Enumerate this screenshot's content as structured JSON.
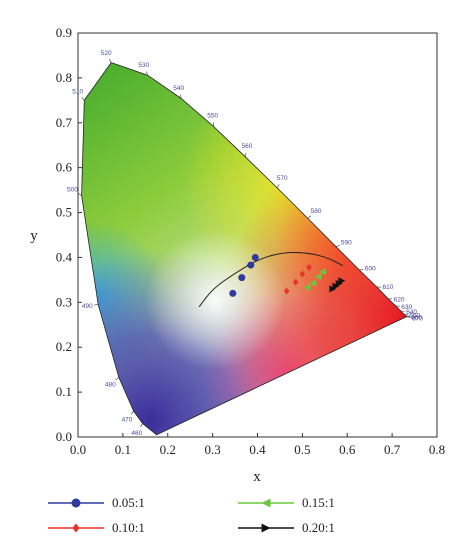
{
  "chart_data": {
    "type": "scatter",
    "xlabel": "x",
    "ylabel": "y",
    "xlim": [
      0.0,
      0.8
    ],
    "ylim": [
      0.0,
      0.9
    ],
    "x_ticks": [
      "0.0",
      "0.1",
      "0.2",
      "0.3",
      "0.4",
      "0.5",
      "0.6",
      "0.7",
      "0.8"
    ],
    "y_ticks": [
      "0.0",
      "0.1",
      "0.2",
      "0.3",
      "0.4",
      "0.5",
      "0.6",
      "0.7",
      "0.8",
      "0.9"
    ],
    "locus_wavelengths": [
      {
        "label": "460",
        "x": 0.144,
        "y": 0.03
      },
      {
        "label": "470",
        "x": 0.124,
        "y": 0.058
      },
      {
        "label": "480",
        "x": 0.091,
        "y": 0.133
      },
      {
        "label": "490",
        "x": 0.045,
        "y": 0.295
      },
      {
        "label": "500",
        "x": 0.008,
        "y": 0.538
      },
      {
        "label": "510",
        "x": 0.014,
        "y": 0.75
      },
      {
        "label": "520",
        "x": 0.074,
        "y": 0.834
      },
      {
        "label": "530",
        "x": 0.155,
        "y": 0.806
      },
      {
        "label": "540",
        "x": 0.23,
        "y": 0.754
      },
      {
        "label": "550",
        "x": 0.302,
        "y": 0.692
      },
      {
        "label": "560",
        "x": 0.373,
        "y": 0.624
      },
      {
        "label": "570",
        "x": 0.444,
        "y": 0.555
      },
      {
        "label": "580",
        "x": 0.512,
        "y": 0.487
      },
      {
        "label": "590",
        "x": 0.575,
        "y": 0.424
      },
      {
        "label": "600",
        "x": 0.627,
        "y": 0.372
      },
      {
        "label": "610",
        "x": 0.666,
        "y": 0.334
      },
      {
        "label": "620",
        "x": 0.691,
        "y": 0.308
      },
      {
        "label": "630",
        "x": 0.708,
        "y": 0.292
      },
      {
        "label": "640",
        "x": 0.719,
        "y": 0.281
      },
      {
        "label": "650",
        "x": 0.726,
        "y": 0.274
      },
      {
        "label": "660",
        "x": 0.73,
        "y": 0.27
      },
      {
        "label": "670",
        "x": 0.732,
        "y": 0.268
      }
    ],
    "planckian_locus": [
      [
        0.27,
        0.29
      ],
      [
        0.3,
        0.33
      ],
      [
        0.35,
        0.365
      ],
      [
        0.4,
        0.395
      ],
      [
        0.45,
        0.41
      ],
      [
        0.5,
        0.412
      ],
      [
        0.55,
        0.402
      ],
      [
        0.59,
        0.382
      ]
    ],
    "series": [
      {
        "name": "0.05:1",
        "marker": "circle",
        "color": "#2e3a9e",
        "points": [
          [
            0.345,
            0.32
          ],
          [
            0.365,
            0.355
          ],
          [
            0.385,
            0.383
          ],
          [
            0.395,
            0.4
          ]
        ]
      },
      {
        "name": "0.10:1",
        "marker": "diamond",
        "color": "#e8322c",
        "points": [
          [
            0.465,
            0.325
          ],
          [
            0.485,
            0.345
          ],
          [
            0.5,
            0.363
          ],
          [
            0.515,
            0.378
          ]
        ]
      },
      {
        "name": "0.15:1",
        "marker": "triangle-left",
        "color": "#6cc63c",
        "points": [
          [
            0.51,
            0.333
          ],
          [
            0.523,
            0.343
          ],
          [
            0.535,
            0.357
          ],
          [
            0.545,
            0.368
          ]
        ]
      },
      {
        "name": "0.20:1",
        "marker": "triangle-right",
        "color": "#111111",
        "points": [
          [
            0.568,
            0.33
          ],
          [
            0.575,
            0.336
          ],
          [
            0.582,
            0.342
          ],
          [
            0.588,
            0.348
          ]
        ]
      }
    ]
  }
}
